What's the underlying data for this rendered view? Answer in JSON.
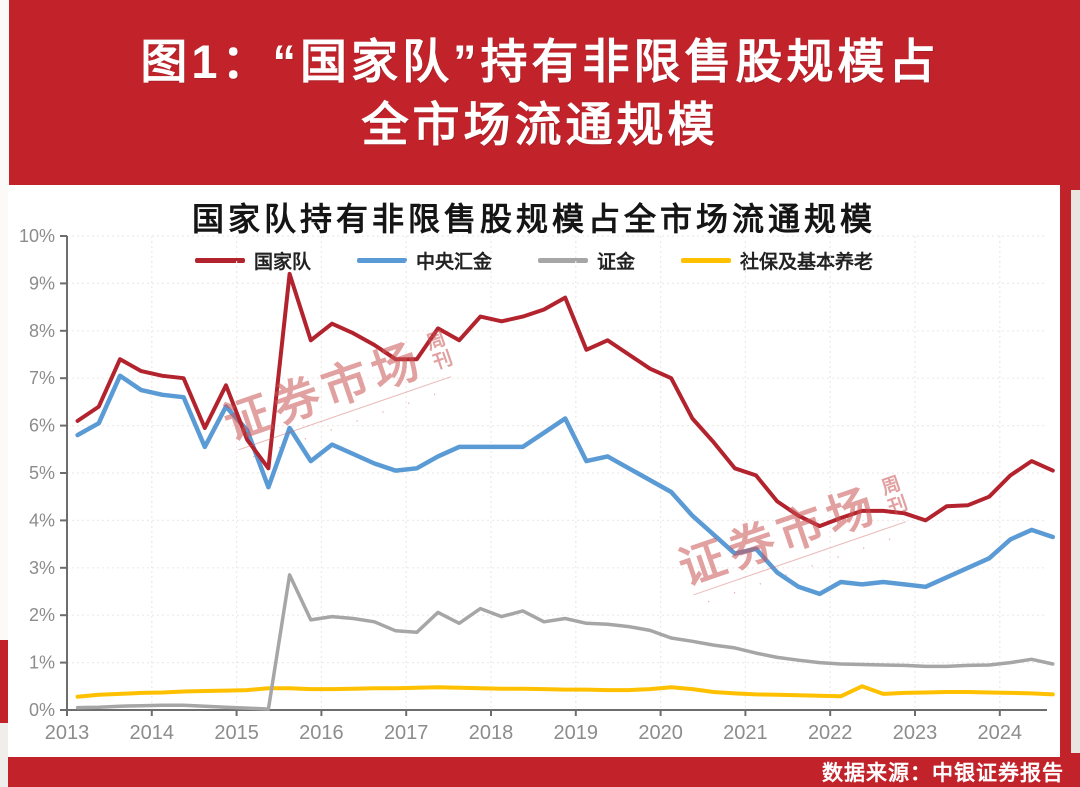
{
  "header": {
    "line1": "图1：“国家队”持有非限售股规模占",
    "line2": "全市场流通规模"
  },
  "watermark": {
    "main": "证券市场",
    "sub": "周刊",
    "tiny": "· · · · · · · ·"
  },
  "footer": {
    "source": "数据来源：中银证券报告"
  },
  "colors": {
    "banner_red": "#c2232b",
    "panel_bg": "#ffffff",
    "axis": "#6d6d6d",
    "tick_label": "#8c8c8c",
    "grid": "#edeae7",
    "watermark": "#cb5454"
  },
  "chart_data": {
    "type": "line",
    "title": "国家队持有非限售股规模占全市场流通规模",
    "xlabel": "",
    "ylabel": "",
    "ylim": [
      0,
      10
    ],
    "grid": true,
    "legend_position": "top",
    "x_tick_labels": [
      "2013",
      "2014",
      "2015",
      "2016",
      "2017",
      "2018",
      "2019",
      "2020",
      "2021",
      "2022",
      "2023",
      "2024"
    ],
    "y_tick_labels": [
      "0%",
      "1%",
      "2%",
      "3%",
      "4%",
      "5%",
      "6%",
      "7%",
      "8%",
      "9%",
      "10%"
    ],
    "quarters": [
      "2013Q1",
      "2013Q2",
      "2013Q3",
      "2013Q4",
      "2014Q1",
      "2014Q2",
      "2014Q3",
      "2014Q4",
      "2015Q1",
      "2015Q2",
      "2015Q3",
      "2015Q4",
      "2016Q1",
      "2016Q2",
      "2016Q3",
      "2016Q4",
      "2017Q1",
      "2017Q2",
      "2017Q3",
      "2017Q4",
      "2018Q1",
      "2018Q2",
      "2018Q3",
      "2018Q4",
      "2019Q1",
      "2019Q2",
      "2019Q3",
      "2019Q4",
      "2020Q1",
      "2020Q2",
      "2020Q3",
      "2020Q4",
      "2021Q1",
      "2021Q2",
      "2021Q3",
      "2021Q4",
      "2022Q1",
      "2022Q2",
      "2022Q3",
      "2022Q4",
      "2023Q1",
      "2023Q2",
      "2023Q3",
      "2023Q4",
      "2024Q1",
      "2024Q2",
      "2024Q3"
    ],
    "series": [
      {
        "name": "国家队",
        "color": "#b2232e",
        "values": [
          6.1,
          6.4,
          7.4,
          7.15,
          7.05,
          7.0,
          5.95,
          6.85,
          5.7,
          5.1,
          9.2,
          7.8,
          8.15,
          7.95,
          7.7,
          7.4,
          7.4,
          8.05,
          7.8,
          8.3,
          8.2,
          8.3,
          8.45,
          8.7,
          7.6,
          7.8,
          7.5,
          7.2,
          7.0,
          6.15,
          5.65,
          5.1,
          4.95,
          4.4,
          4.1,
          3.88,
          4.05,
          4.2,
          4.2,
          4.15,
          4.0,
          4.3,
          4.32,
          4.5,
          4.95,
          5.25,
          5.05
        ]
      },
      {
        "name": "中央汇金",
        "color": "#5b9bd5",
        "values": [
          5.8,
          6.05,
          7.05,
          6.75,
          6.65,
          6.6,
          5.55,
          6.4,
          5.9,
          4.7,
          5.95,
          5.25,
          5.6,
          5.4,
          5.2,
          5.05,
          5.1,
          5.35,
          5.55,
          5.55,
          5.55,
          5.55,
          5.85,
          6.15,
          5.25,
          5.35,
          5.1,
          4.85,
          4.6,
          4.1,
          3.7,
          3.3,
          3.4,
          2.9,
          2.6,
          2.45,
          2.7,
          2.65,
          2.7,
          2.65,
          2.6,
          2.8,
          3.0,
          3.2,
          3.6,
          3.8,
          3.65
        ]
      },
      {
        "name": "证金",
        "color": "#a6a6a6",
        "values": [
          0.05,
          0.06,
          0.08,
          0.09,
          0.1,
          0.1,
          0.08,
          0.06,
          0.04,
          0.02,
          2.85,
          1.9,
          1.97,
          1.93,
          1.86,
          1.67,
          1.64,
          2.06,
          1.83,
          2.14,
          1.97,
          2.09,
          1.86,
          1.93,
          1.83,
          1.81,
          1.76,
          1.68,
          1.52,
          1.45,
          1.37,
          1.31,
          1.2,
          1.11,
          1.05,
          1.0,
          0.97,
          0.96,
          0.95,
          0.94,
          0.92,
          0.92,
          0.94,
          0.95,
          1.0,
          1.07,
          0.97
        ]
      },
      {
        "name": "社保及基本养老",
        "color": "#ffc000",
        "values": [
          0.28,
          0.32,
          0.34,
          0.36,
          0.37,
          0.39,
          0.4,
          0.41,
          0.42,
          0.46,
          0.46,
          0.44,
          0.44,
          0.45,
          0.46,
          0.46,
          0.47,
          0.48,
          0.47,
          0.46,
          0.45,
          0.45,
          0.44,
          0.43,
          0.43,
          0.42,
          0.42,
          0.44,
          0.48,
          0.44,
          0.38,
          0.35,
          0.33,
          0.32,
          0.31,
          0.3,
          0.29,
          0.5,
          0.34,
          0.36,
          0.37,
          0.38,
          0.38,
          0.37,
          0.36,
          0.35,
          0.33
        ]
      }
    ]
  }
}
